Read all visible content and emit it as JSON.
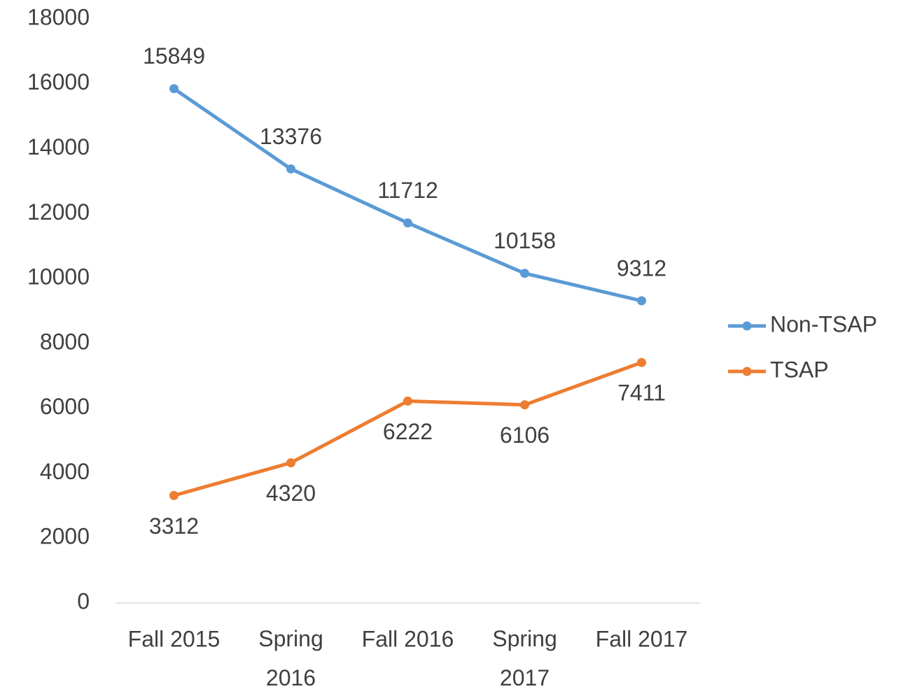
{
  "chart_data": {
    "type": "line",
    "categories": [
      "Fall 2015",
      "Spring 2016",
      "Fall 2016",
      "Spring 2017",
      "Fall 2017"
    ],
    "series": [
      {
        "name": "Non-TSAP",
        "color": "#5b9bd5",
        "values": [
          15849,
          13376,
          11712,
          10158,
          9312
        ]
      },
      {
        "name": "TSAP",
        "color": "#ed7d31",
        "values": [
          3312,
          4320,
          6222,
          6106,
          7411
        ]
      }
    ],
    "ylim": [
      0,
      18000
    ],
    "yticks": [
      0,
      2000,
      4000,
      6000,
      8000,
      10000,
      12000,
      14000,
      16000,
      18000
    ],
    "grid": false,
    "legend": "right"
  }
}
